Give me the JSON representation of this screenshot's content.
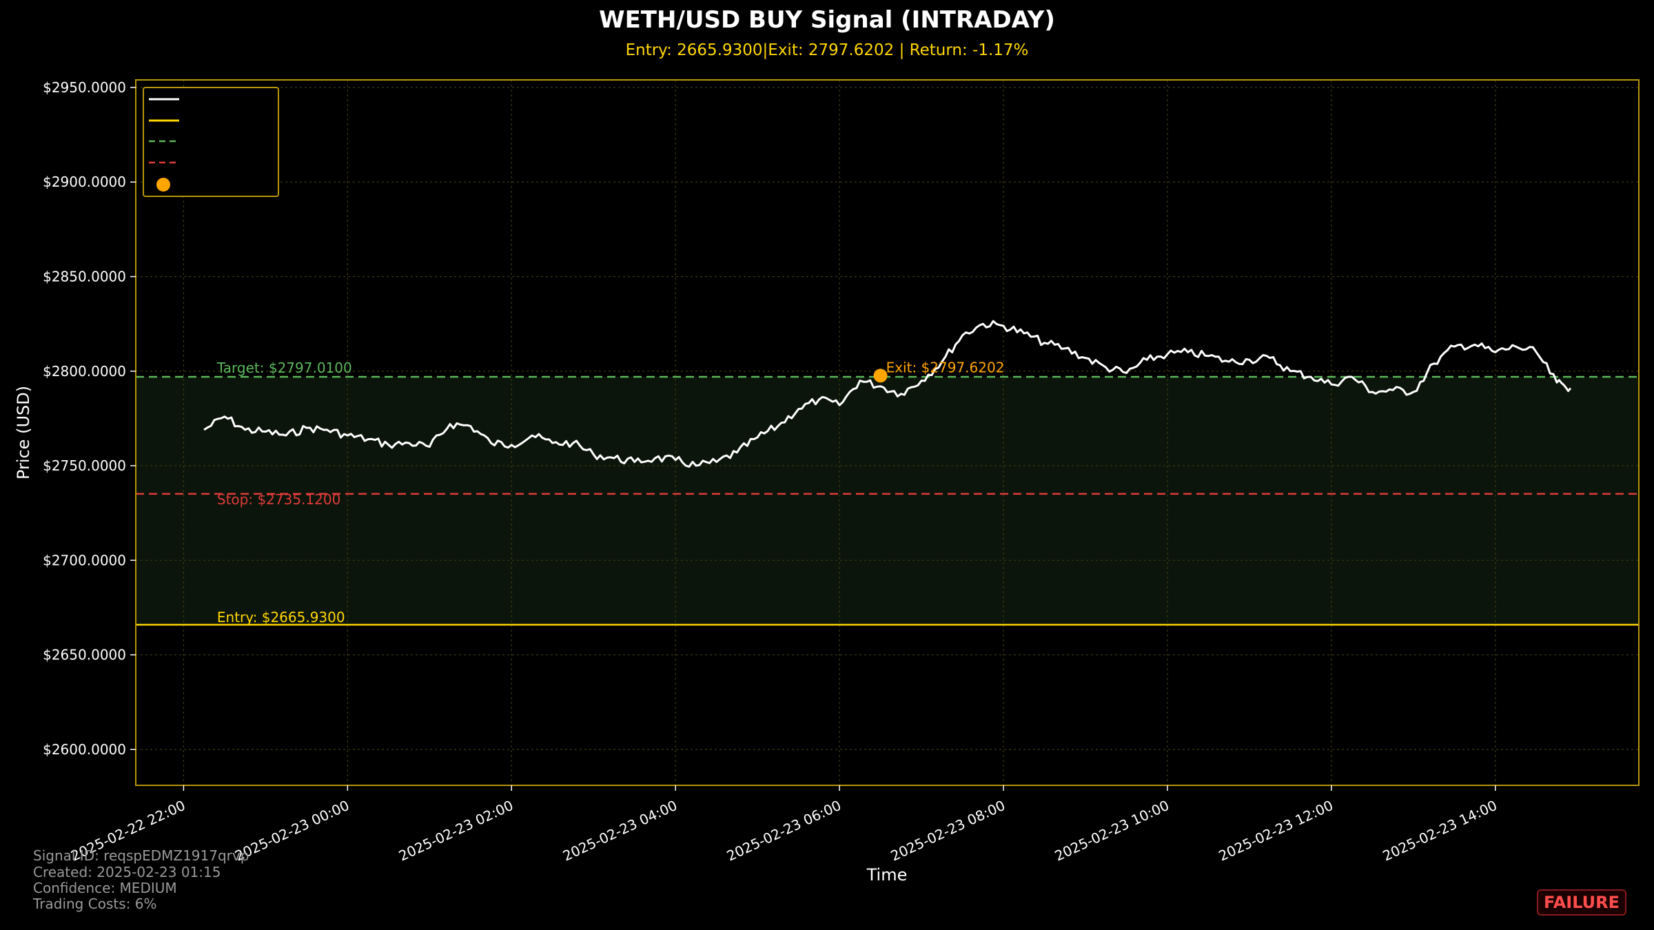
{
  "chart_data": {
    "type": "line",
    "title": "WETH/USD BUY Signal (INTRADAY)",
    "subtitle": "Entry: 2665.9300|Exit: 2797.6202 | Return: -1.17%",
    "xlabel": "Time",
    "ylabel": "Price (USD)",
    "x_ticks": [
      "2025-02-22 22:00",
      "2025-02-23 00:00",
      "2025-02-23 02:00",
      "2025-02-23 04:00",
      "2025-02-23 06:00",
      "2025-02-23 08:00",
      "2025-02-23 10:00",
      "2025-02-23 12:00",
      "2025-02-23 14:00"
    ],
    "y_ticks": [
      "$2600.0000",
      "$2650.0000",
      "$2700.0000",
      "$2750.0000",
      "$2800.0000",
      "$2850.0000",
      "$2900.0000",
      "$2950.0000"
    ],
    "ylim": [
      2581,
      2954
    ],
    "xlim": [
      "2025-02-22 21:25",
      "2025-02-23 15:45"
    ],
    "grid": true,
    "legend_placement": "upper left",
    "colors": {
      "price": "#ffffff",
      "entry": "#FFD700",
      "target": "#5cb85c",
      "stop": "#e03b3b",
      "exit_marker": "#FFA500",
      "frame": "#b8960b",
      "zone": "#0b150b"
    },
    "levels": {
      "entry": 2665.93,
      "target": 2797.01,
      "stop": 2735.12
    },
    "level_labels": {
      "target": "Target: $2797.0100",
      "stop": "Stop: $2735.1200",
      "entry": "Entry: $2665.9300",
      "exit": "Exit: $2797.6202"
    },
    "exit_point": {
      "x": "2025-02-23 06:30",
      "y": 2797.62
    },
    "series": [
      {
        "x": [
          "2025-02-22 22:15",
          "2025-02-22 22:30",
          "2025-02-22 22:45",
          "2025-02-22 23:00",
          "2025-02-22 23:15",
          "2025-02-22 23:30",
          "2025-02-22 23:45",
          "2025-02-23 00:00",
          "2025-02-23 00:15",
          "2025-02-23 00:30",
          "2025-02-23 00:45",
          "2025-02-23 01:00",
          "2025-02-23 01:15",
          "2025-02-23 01:30",
          "2025-02-23 01:45",
          "2025-02-23 02:00",
          "2025-02-23 02:15",
          "2025-02-23 02:30",
          "2025-02-23 02:45",
          "2025-02-23 03:00",
          "2025-02-23 03:15",
          "2025-02-23 03:30",
          "2025-02-23 03:45",
          "2025-02-23 04:00",
          "2025-02-23 04:15",
          "2025-02-23 04:30",
          "2025-02-23 04:45",
          "2025-02-23 05:00",
          "2025-02-23 05:15",
          "2025-02-23 05:30",
          "2025-02-23 05:45",
          "2025-02-23 06:00",
          "2025-02-23 06:15",
          "2025-02-23 06:30",
          "2025-02-23 06:45",
          "2025-02-23 07:00",
          "2025-02-23 07:15",
          "2025-02-23 07:30",
          "2025-02-23 07:45",
          "2025-02-23 08:00",
          "2025-02-23 08:15",
          "2025-02-23 08:30",
          "2025-02-23 08:45",
          "2025-02-23 09:00",
          "2025-02-23 09:15",
          "2025-02-23 09:30",
          "2025-02-23 09:45",
          "2025-02-23 10:00",
          "2025-02-23 10:15",
          "2025-02-23 10:30",
          "2025-02-23 10:45",
          "2025-02-23 11:00",
          "2025-02-23 11:15",
          "2025-02-23 11:30",
          "2025-02-23 11:45",
          "2025-02-23 12:00",
          "2025-02-23 12:15",
          "2025-02-23 12:30",
          "2025-02-23 12:45",
          "2025-02-23 13:00",
          "2025-02-23 13:15",
          "2025-02-23 13:30",
          "2025-02-23 13:45",
          "2025-02-23 14:00",
          "2025-02-23 14:15",
          "2025-02-23 14:30",
          "2025-02-23 14:45",
          "2025-02-23 14:55"
        ],
        "values": [
          2769,
          2776,
          2769,
          2768,
          2766,
          2770,
          2769,
          2766,
          2764,
          2761,
          2762,
          2760,
          2772,
          2771,
          2762,
          2761,
          2766,
          2762,
          2762,
          2756,
          2754,
          2752,
          2754,
          2753,
          2750,
          2752,
          2757,
          2765,
          2771,
          2780,
          2785,
          2782,
          2795,
          2792,
          2788,
          2795,
          2805,
          2819,
          2825,
          2824,
          2820,
          2815,
          2812,
          2807,
          2802,
          2799,
          2806,
          2809,
          2810,
          2808,
          2805,
          2806,
          2807,
          2800,
          2797,
          2793,
          2797,
          2789,
          2790,
          2789,
          2804,
          2813,
          2814,
          2810,
          2813,
          2810,
          2794,
          2791
        ]
      }
    ]
  },
  "footer": {
    "signal_id": "Signal ID: reqspEDMZ1917qrvp",
    "created": "Created: 2025-02-23 01:15",
    "confidence": "Confidence: MEDIUM",
    "trading_costs": "Trading Costs: 6%"
  },
  "status": {
    "label": "FAILURE",
    "color": "#ff4d4d"
  }
}
